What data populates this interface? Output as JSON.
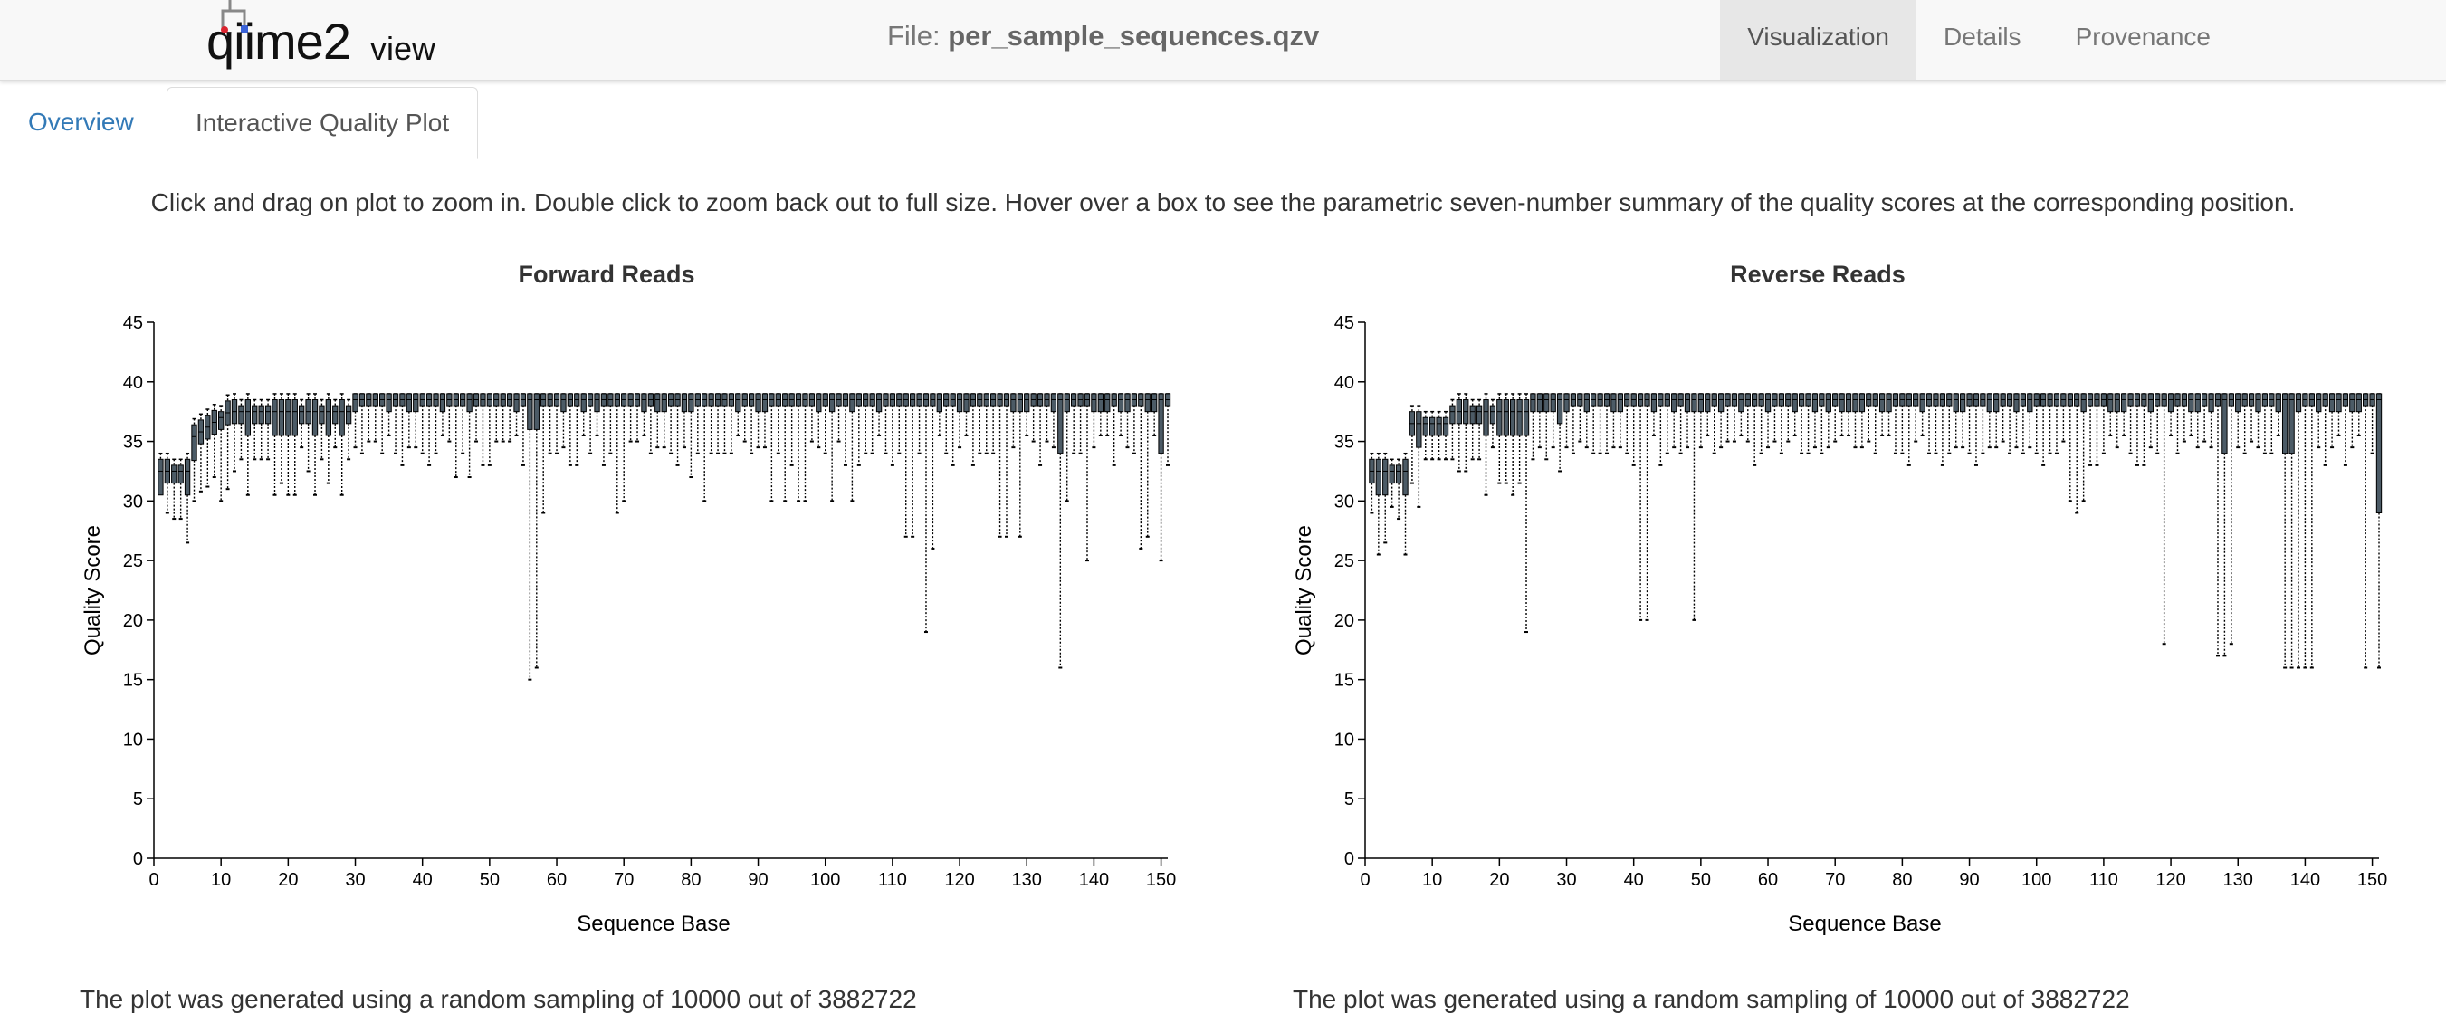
{
  "app": {
    "logo_main": "qiime2",
    "logo_sub": "view",
    "file_prefix": "File:",
    "file_name": "per_sample_sequences.qzv"
  },
  "nav": {
    "items": [
      "Visualization",
      "Details",
      "Provenance"
    ],
    "active": "Visualization"
  },
  "tabs": [
    {
      "label": "Overview",
      "active": false
    },
    {
      "label": "Interactive Quality Plot",
      "active": true
    }
  ],
  "instructions": "Click and drag on plot to zoom in. Double click to zoom back out to full size. Hover over a box to see the parametric seven-number summary of the quality scores at the corresponding position.",
  "bottom_note_left": "The plot was generated using a random sampling of 10000 out of 3882722",
  "bottom_note_right": "The plot was generated using a random sampling of 10000 out of 3882722",
  "colors": {
    "box_fill": "#4c5b66",
    "box_stroke": "#000000",
    "whisker": "#000000",
    "accent_link": "#337ab7"
  },
  "chart_data": [
    {
      "type": "box",
      "title": "Forward Reads",
      "xlabel": "Sequence Base",
      "ylabel": "Quality Score",
      "xlim": [
        0,
        151
      ],
      "ylim": [
        0,
        45
      ],
      "xticks": [
        0,
        10,
        20,
        30,
        40,
        50,
        60,
        70,
        80,
        90,
        100,
        110,
        120,
        130,
        140,
        150
      ],
      "yticks": [
        0,
        5,
        10,
        15,
        20,
        25,
        30,
        35,
        40,
        45
      ],
      "whisker_low_overrides": {
        "1": 31,
        "2": 29,
        "6": 30,
        "9": 32,
        "10": 30,
        "11": 31,
        "45": 32,
        "47": 32,
        "56": 15,
        "57": 16,
        "58": 29,
        "69": 29,
        "70": 30,
        "80": 32,
        "82": 30,
        "92": 30,
        "94": 30,
        "96": 30,
        "97": 30,
        "101": 30,
        "104": 30,
        "112": 27,
        "113": 27,
        "115": 19,
        "116": 26,
        "126": 27,
        "127": 27,
        "129": 27,
        "135": 16,
        "136": 30,
        "139": 25,
        "147": 26,
        "148": 27,
        "150": 25
      },
      "q1_overrides": {
        "56": 36,
        "57": 36,
        "135": 34,
        "150": 34
      },
      "summary": "151 positions; medians ~32-33 for bases 1-5, rising to ~37-38 by base 12 and ~38-39 from base 30 to 151; dips in lower whiskers at bases 56-57 (~15-16), 115 (~19), 135 (~16)."
    },
    {
      "type": "box",
      "title": "Reverse Reads",
      "xlabel": "Sequence Base",
      "ylabel": "Quality Score",
      "xlim": [
        0,
        151
      ],
      "ylim": [
        0,
        45
      ],
      "xticks": [
        0,
        10,
        20,
        30,
        40,
        50,
        60,
        70,
        80,
        90,
        100,
        110,
        120,
        130,
        140,
        150
      ],
      "yticks": [
        0,
        5,
        10,
        15,
        20,
        25,
        30,
        35,
        40,
        45
      ],
      "whisker_low_overrides": {
        "1": 29,
        "24": 19,
        "41": 20,
        "42": 20,
        "49": 20,
        "105": 30,
        "106": 29,
        "107": 30,
        "119": 18,
        "127": 17,
        "128": 17,
        "129": 18,
        "137": 16,
        "138": 16,
        "139": 16,
        "140": 16,
        "141": 16,
        "149": 16,
        "151": 16
      },
      "q1_overrides": {
        "128": 34,
        "137": 34,
        "138": 34,
        "151": 29
      },
      "summary": "151 positions; medians ~32-33 for bases 1-6, ~37 by base 10, ~38-39 from base 25 onward; low whiskers near 16-20 at bases 24, 41-42, 49, 119, 127-129, 137-141, 149-151."
    }
  ]
}
